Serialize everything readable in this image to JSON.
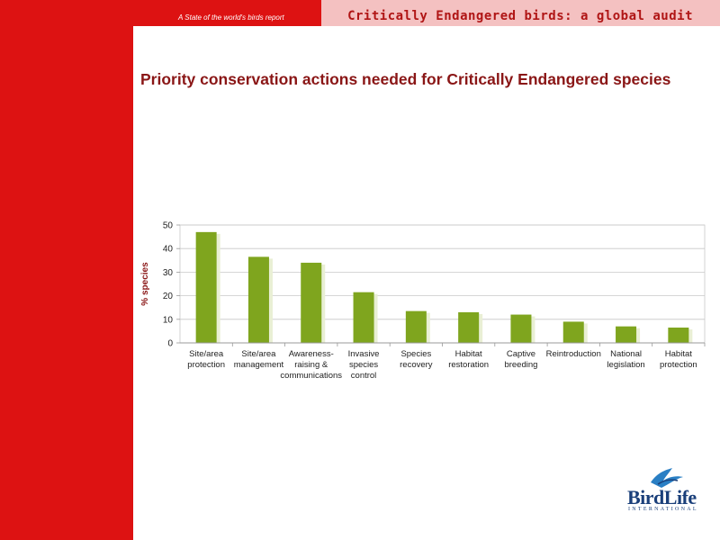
{
  "header": {
    "report_label": "A State of the world's birds report",
    "banner_title": "Critically Endangered birds: a global audit"
  },
  "slide": {
    "title": "Priority conservation actions needed for Critically Endangered species"
  },
  "logo": {
    "name": "BirdLife",
    "subtitle": "INTERNATIONAL",
    "icon": "bird-logo-icon"
  },
  "colors": {
    "red": "#dd1212",
    "pink": "#f4c1c1",
    "bar": "#7fa51e",
    "bar_shadow": "#e9efd4",
    "title": "#8a1616"
  },
  "chart_data": {
    "type": "bar",
    "title": "",
    "xlabel": "",
    "ylabel": "% species",
    "ylim": [
      0,
      50
    ],
    "yticks": [
      0,
      10,
      20,
      30,
      40,
      50
    ],
    "grid": true,
    "categories": [
      [
        "Site/area",
        "protection"
      ],
      [
        "Site/area",
        "management"
      ],
      [
        "Awareness-",
        "raising &",
        "communications"
      ],
      [
        "Invasive",
        "species",
        "control"
      ],
      [
        "Species",
        "recovery"
      ],
      [
        "Habitat",
        "restoration"
      ],
      [
        "Captive",
        "breeding"
      ],
      [
        "Reintroduction"
      ],
      [
        "National",
        "legislation"
      ],
      [
        "Habitat",
        "protection"
      ]
    ],
    "values": [
      47,
      36.5,
      34,
      21.5,
      13.5,
      13,
      12,
      9,
      7,
      6.5
    ]
  }
}
